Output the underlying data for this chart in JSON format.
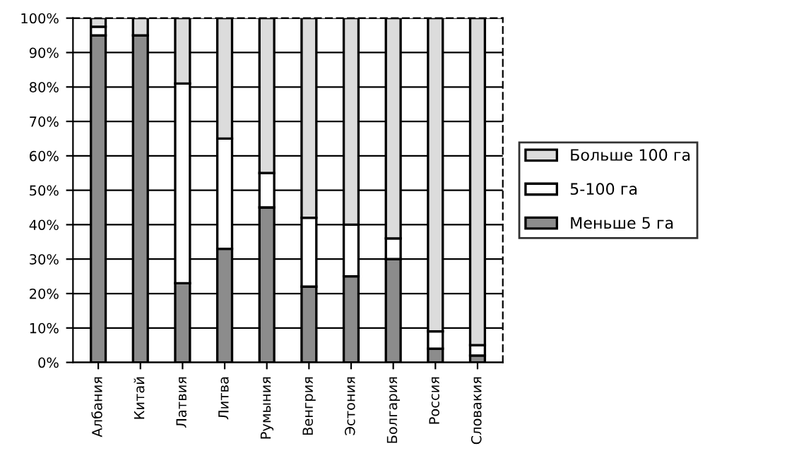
{
  "chart_data": {
    "type": "bar",
    "stacked": true,
    "categories": [
      "Албания",
      "Китай",
      "Латвия",
      "Литва",
      "Румыния",
      "Венгрия",
      "Эстония",
      "Болгария",
      "Россия",
      "Словакия"
    ],
    "series": [
      {
        "name": "Меньше 5 га",
        "color": "#8c8c8c",
        "values": [
          95,
          95,
          23,
          33,
          45,
          22,
          25,
          30,
          4,
          2
        ]
      },
      {
        "name": "5-100 га",
        "color": "#ffffff",
        "values": [
          2.5,
          null,
          58,
          32,
          10,
          20,
          15,
          6,
          5,
          3
        ]
      },
      {
        "name": "Больше 100 га",
        "color": "#dcdcdc",
        "values": [
          2.5,
          5,
          19,
          35,
          45,
          58,
          60,
          64,
          91,
          95
        ]
      }
    ],
    "ylim": [
      0,
      100
    ],
    "yticks": [
      {
        "value": 0,
        "label": "0%"
      },
      {
        "value": 10,
        "label": "10%"
      },
      {
        "value": 20,
        "label": "20%"
      },
      {
        "value": 30,
        "label": "30%"
      },
      {
        "value": 40,
        "label": "40%"
      },
      {
        "value": 50,
        "label": "50%"
      },
      {
        "value": 60,
        "label": "60%"
      },
      {
        "value": 70,
        "label": "70%"
      },
      {
        "value": 80,
        "label": "80%"
      },
      {
        "value": 90,
        "label": "90%"
      },
      {
        "value": 100,
        "label": "100%"
      }
    ],
    "grid": "y",
    "legend": "right"
  }
}
